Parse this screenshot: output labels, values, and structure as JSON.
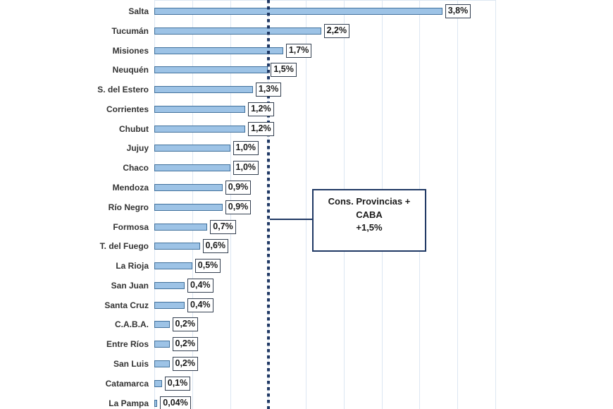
{
  "chart_data": {
    "type": "bar",
    "orientation": "horizontal",
    "categories": [
      "Salta",
      "Tucumán",
      "Misiones",
      "Neuquén",
      "S. del Estero",
      "Corrientes",
      "Chubut",
      "Jujuy",
      "Chaco",
      "Mendoza",
      "Río Negro",
      "Formosa",
      "T. del Fuego",
      "La Rioja",
      "San Juan",
      "Santa Cruz",
      "C.A.B.A.",
      "Entre Ríos",
      "San Luis",
      "Catamarca",
      "La Pampa"
    ],
    "values": [
      3.8,
      2.2,
      1.7,
      1.5,
      1.3,
      1.2,
      1.2,
      1.0,
      1.0,
      0.9,
      0.9,
      0.7,
      0.6,
      0.5,
      0.4,
      0.4,
      0.2,
      0.2,
      0.2,
      0.1,
      0.04
    ],
    "value_labels": [
      "3,8%",
      "2,2%",
      "1,7%",
      "1,5%",
      "1,3%",
      "1,2%",
      "1,2%",
      "1,0%",
      "1,0%",
      "0,9%",
      "0,9%",
      "0,7%",
      "0,6%",
      "0,5%",
      "0,4%",
      "0,4%",
      "0,2%",
      "0,2%",
      "0,2%",
      "0,1%",
      "0,04%"
    ],
    "xlim": [
      0,
      4.5
    ],
    "gridline_interval": 0.5,
    "grid": true,
    "legend": false,
    "reference_line": {
      "value": 1.5,
      "style": "dashed"
    },
    "annotation": {
      "lines": [
        "Cons. Provincias +",
        "CABA",
        "+1,5%"
      ]
    },
    "colors": {
      "bar_fill": "#9DC3E6",
      "bar_border": "#41719C",
      "gridline": "#DCE6F2",
      "reference_line": "#1F3864",
      "annotation_border": "#1F3864",
      "value_box_border": "#333F50"
    }
  }
}
